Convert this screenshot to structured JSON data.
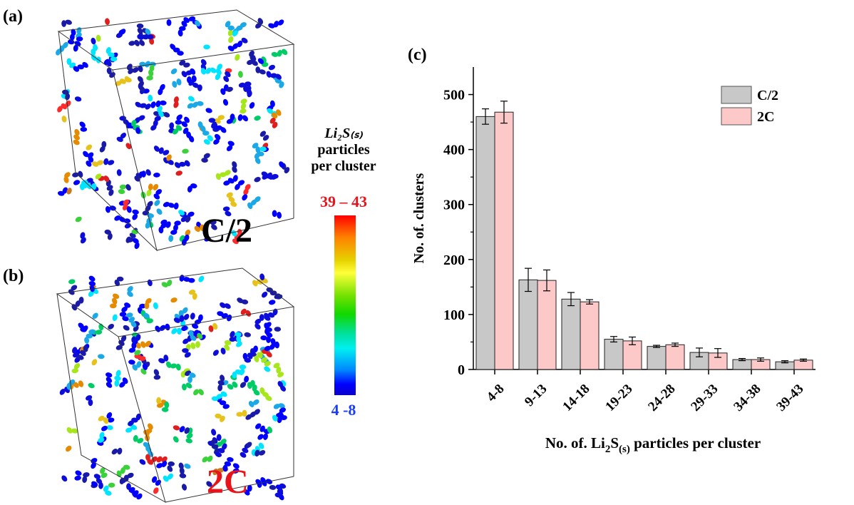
{
  "panels": {
    "a": {
      "label": "(a)",
      "rate": "C/2"
    },
    "b": {
      "label": "(b)",
      "rate": "2C"
    },
    "c": {
      "label": "(c)"
    }
  },
  "colorbar": {
    "title_formula": "Li₂S₍ₛ₎",
    "title_line2": "particles",
    "title_line3": "per cluster",
    "max_label": "39 – 43",
    "min_label": "4 -8"
  },
  "colors": {
    "c2_bar": "#c8c8c8",
    "c2c_bar": "#fcc8c8",
    "max_label": "#e8141b",
    "min_label": "#1a3cff"
  },
  "chart_data": {
    "type": "bar",
    "categories": [
      "4-8",
      "9-13",
      "14-18",
      "19-23",
      "24-28",
      "29-33",
      "34-38",
      "39-43"
    ],
    "series": [
      {
        "name": "C/2",
        "values": [
          460,
          163,
          128,
          55,
          42,
          31,
          18,
          14
        ],
        "errors": [
          14,
          21,
          12,
          5,
          2,
          8,
          2,
          2
        ]
      },
      {
        "name": "2C",
        "values": [
          468,
          162,
          123,
          52,
          45,
          30,
          18,
          17
        ],
        "errors": [
          20,
          19,
          4,
          7,
          3,
          8,
          3,
          2
        ]
      }
    ],
    "xlabel_prefix": "No. of. Li",
    "xlabel_sub1": "2",
    "xlabel_mid": "S",
    "xlabel_sub2": "(s)",
    "xlabel_suffix": " particles per cluster",
    "ylabel": "No. of. clusters",
    "ylim": [
      0,
      550
    ],
    "yticks": [
      0,
      100,
      200,
      300,
      400,
      500
    ],
    "legend": "top-right",
    "grid": false
  }
}
